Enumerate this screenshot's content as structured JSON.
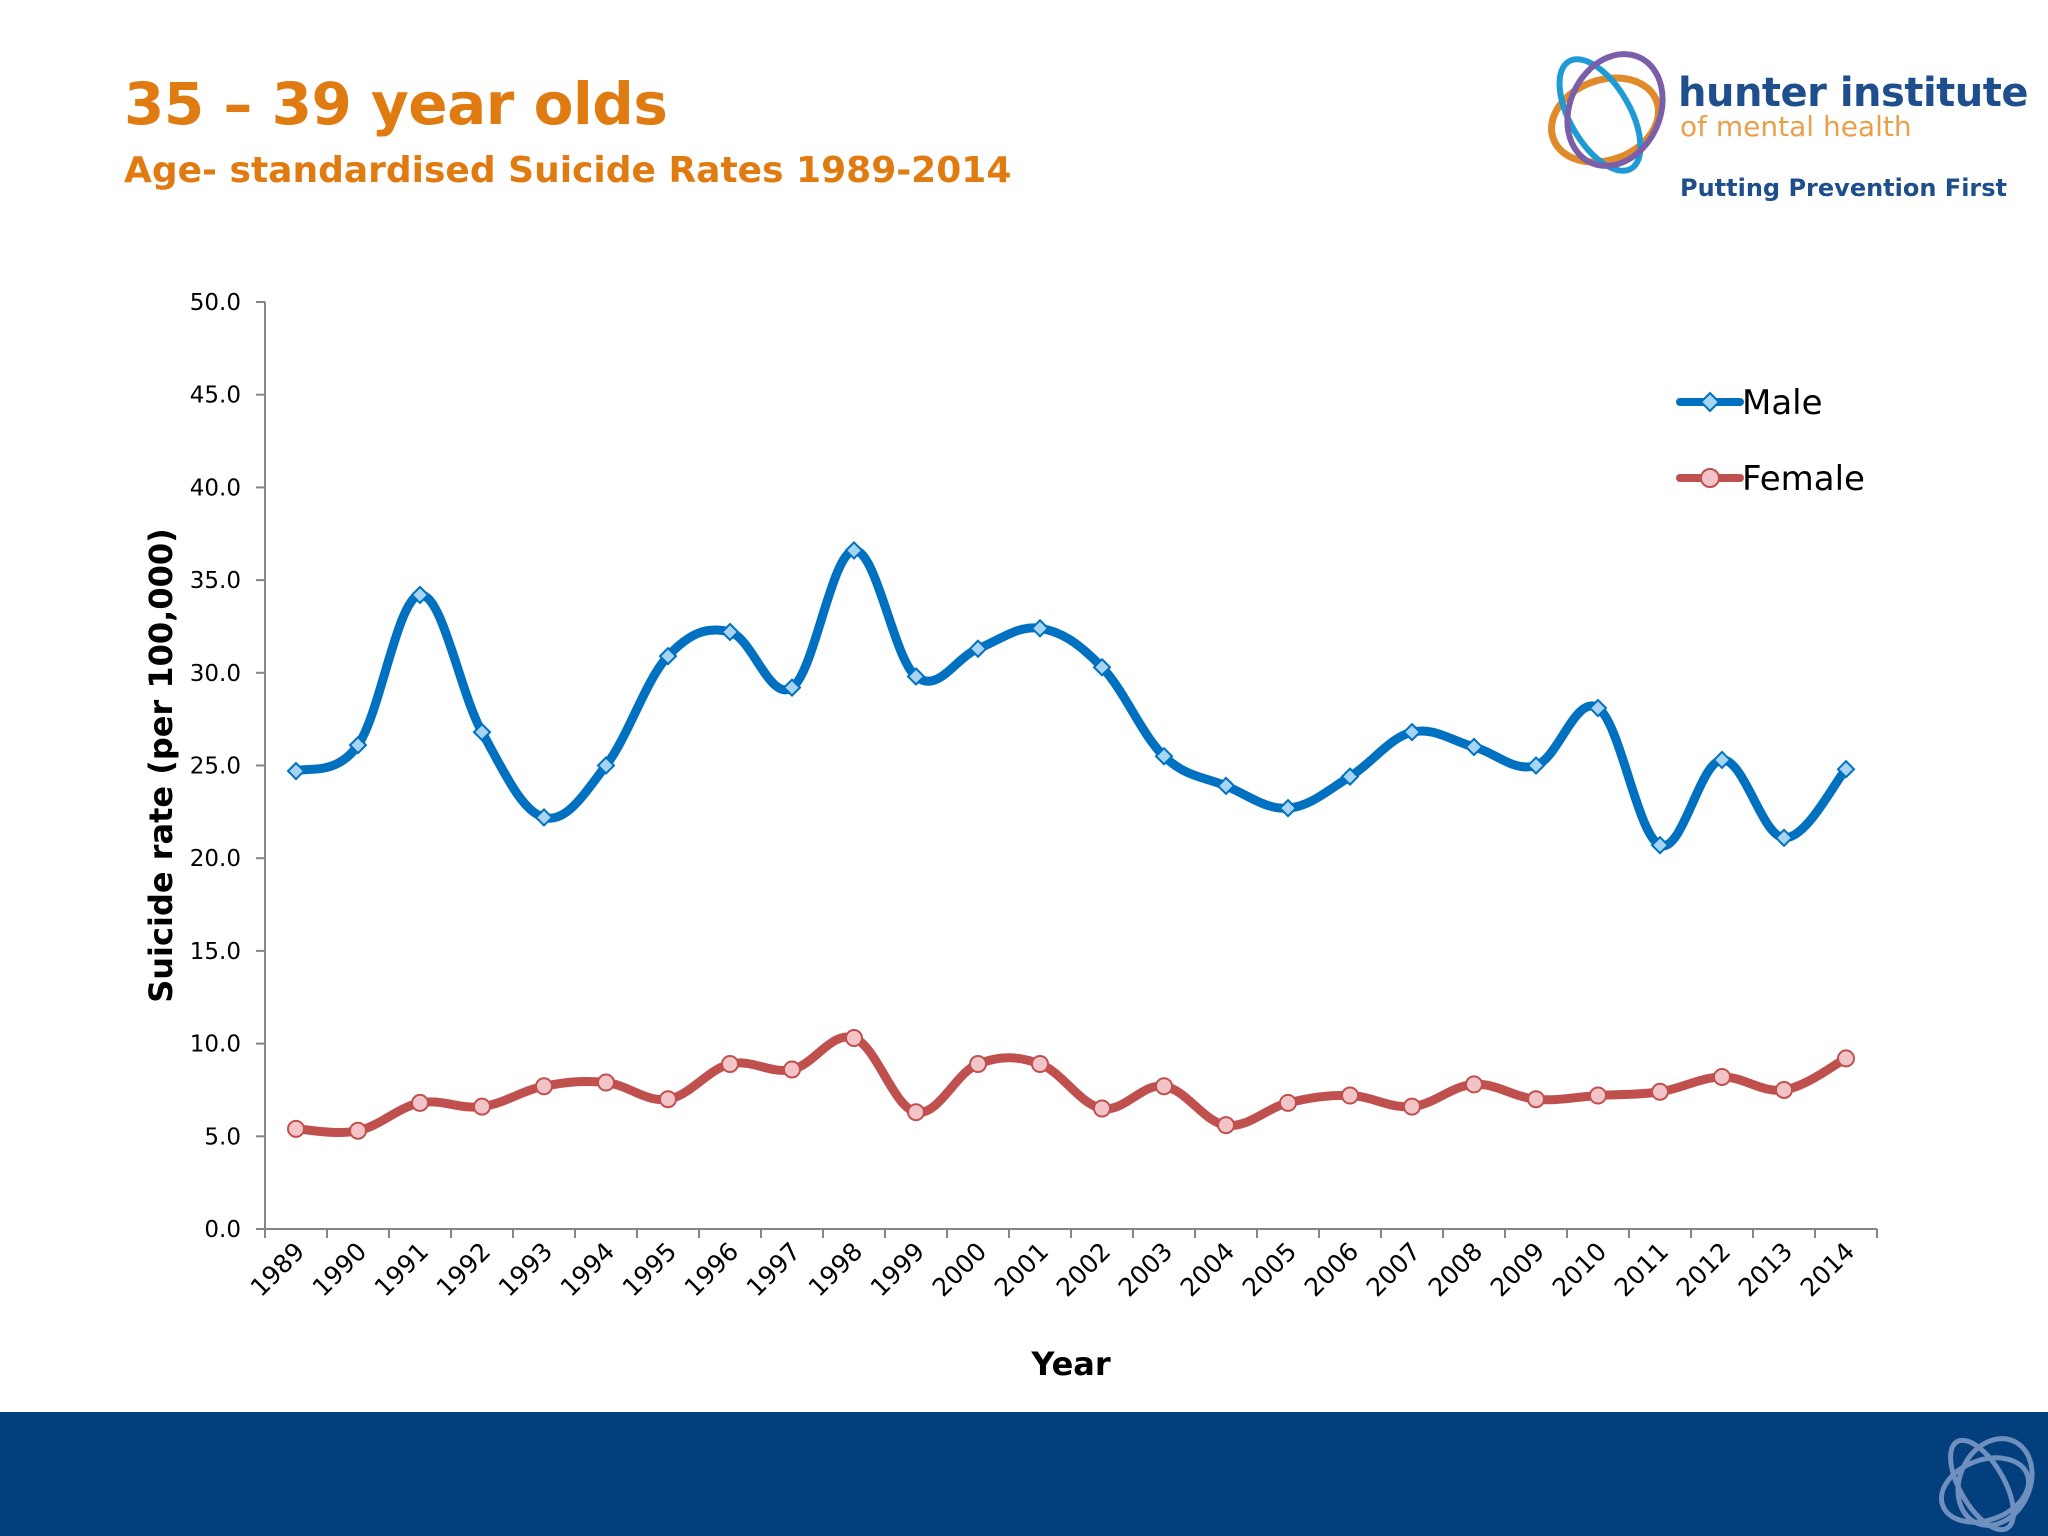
{
  "header": {
    "title": "35 – 39 year olds",
    "subtitle": "Age- standardised Suicide Rates 1989-2014"
  },
  "logo": {
    "line1": "hunter institute",
    "line2": "of mental health",
    "tagline": "Putting Prevention First"
  },
  "chart_data": {
    "type": "line",
    "xlabel": "Year",
    "ylabel": "Suicide rate (per 100,000)",
    "ylim": [
      0,
      50
    ],
    "y_ticks": [
      "0.0",
      "5.0",
      "10.0",
      "15.0",
      "20.0",
      "25.0",
      "30.0",
      "35.0",
      "40.0",
      "45.0",
      "50.0"
    ],
    "y_tick_values": [
      0,
      5,
      10,
      15,
      20,
      25,
      30,
      35,
      40,
      45,
      50
    ],
    "categories": [
      "1989",
      "1990",
      "1991",
      "1992",
      "1993",
      "1994",
      "1995",
      "1996",
      "1997",
      "1998",
      "1999",
      "2000",
      "2001",
      "2002",
      "2003",
      "2004",
      "2005",
      "2006",
      "2007",
      "2008",
      "2009",
      "2010",
      "2011",
      "2012",
      "2013",
      "2014"
    ],
    "legend_position": "top-right",
    "grid": false,
    "series": [
      {
        "name": "Male",
        "color": "#0070c0",
        "marker": "diamond",
        "marker_fill": "#a6d4f2",
        "values": [
          24.7,
          26.1,
          34.2,
          26.8,
          22.2,
          25.0,
          30.9,
          32.2,
          29.2,
          36.6,
          29.8,
          31.3,
          32.4,
          30.3,
          25.5,
          23.9,
          22.7,
          24.4,
          26.8,
          26.0,
          25.0,
          28.1,
          20.7,
          25.3,
          21.1,
          24.8
        ]
      },
      {
        "name": "Female",
        "color": "#c0504d",
        "marker": "circle",
        "marker_fill": "#f2c4c8",
        "values": [
          5.4,
          5.3,
          6.8,
          6.6,
          7.7,
          7.9,
          7.0,
          8.9,
          8.6,
          10.3,
          6.3,
          8.9,
          8.9,
          6.5,
          7.7,
          5.6,
          6.8,
          7.2,
          6.6,
          7.8,
          7.0,
          7.2,
          7.4,
          8.2,
          7.5,
          9.2
        ]
      }
    ]
  }
}
